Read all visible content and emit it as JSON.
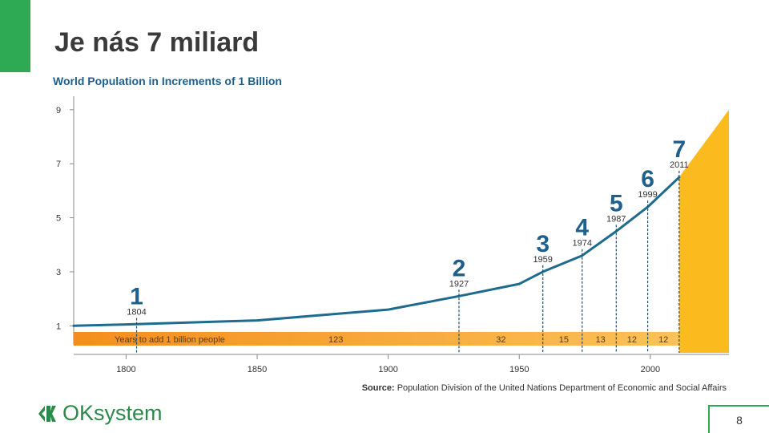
{
  "slide": {
    "title": "Je nás 7 miliard",
    "page_number": "8",
    "logo_text": "OKsystem",
    "accent_color": "#2faa54"
  },
  "chart_data": {
    "type": "line",
    "title": "World Population in Increments of 1 Billion",
    "source_label": "Source:",
    "source_text": "Population Division of the United Nations Department of Economic and Social Affairs",
    "xlim": [
      1780,
      2030
    ],
    "ylim": [
      0,
      9.5
    ],
    "x_ticks": [
      1800,
      1850,
      1900,
      1950,
      2000
    ],
    "y_ticks": [
      1,
      3,
      5,
      7,
      9
    ],
    "series": [
      {
        "x": [
          1780,
          1800,
          1850,
          1900,
          1927,
          1950,
          1959,
          1974,
          1987,
          1999,
          2011
        ],
        "y": [
          1.0,
          1.05,
          1.2,
          1.6,
          2.1,
          2.55,
          3.0,
          3.6,
          4.5,
          5.4,
          6.5
        ]
      }
    ],
    "projection": {
      "x_start": 2011,
      "x_end": 2030,
      "y_start": 6.5,
      "y_end": 9.0,
      "color": "#fbbb1f"
    },
    "milestones": [
      {
        "billion": "1",
        "year": "1804",
        "x": 1804,
        "y": 1.05
      },
      {
        "billion": "2",
        "year": "1927",
        "x": 1927,
        "y": 2.1
      },
      {
        "billion": "3",
        "year": "1959",
        "x": 1959,
        "y": 3.0
      },
      {
        "billion": "4",
        "year": "1974",
        "x": 1974,
        "y": 3.6
      },
      {
        "billion": "5",
        "year": "1987",
        "x": 1987,
        "y": 4.5
      },
      {
        "billion": "6",
        "year": "1999",
        "x": 1999,
        "y": 5.4
      },
      {
        "billion": "7",
        "year": "2011",
        "x": 2011,
        "y": 6.5
      }
    ],
    "band_label": "Years to add 1 billion people",
    "intervals": [
      {
        "value": "123",
        "x": 1880
      },
      {
        "value": "32",
        "x": 1943
      },
      {
        "value": "15",
        "x": 1967
      },
      {
        "value": "13",
        "x": 1981
      },
      {
        "value": "12",
        "x": 1993
      },
      {
        "value": "12",
        "x": 2005
      }
    ],
    "line_color": "#1e6b8e",
    "band_colors": [
      "#f58d1e",
      "#fbc257"
    ]
  }
}
